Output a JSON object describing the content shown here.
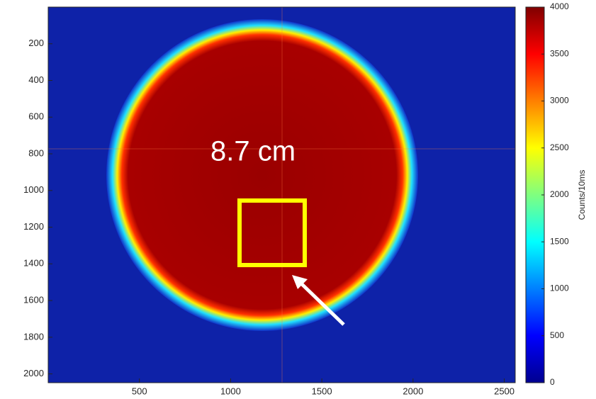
{
  "chart_data": {
    "type": "image",
    "xlim": [
      0,
      2560
    ],
    "xticks": [
      500,
      1000,
      1500,
      2000,
      2500
    ],
    "ylim": [
      0,
      2048
    ],
    "y_direction": "reverse",
    "yticks": [
      200,
      400,
      600,
      800,
      1000,
      1200,
      1400,
      1600,
      1800,
      2000
    ],
    "colorbar": {
      "label": "Counts/10ms",
      "lim": [
        0,
        4000
      ],
      "ticks": [
        0,
        500,
        1000,
        1500,
        2000,
        2500,
        3000,
        3500,
        4000
      ],
      "colormap": "jet"
    },
    "annotation": "8.7 cm"
  }
}
